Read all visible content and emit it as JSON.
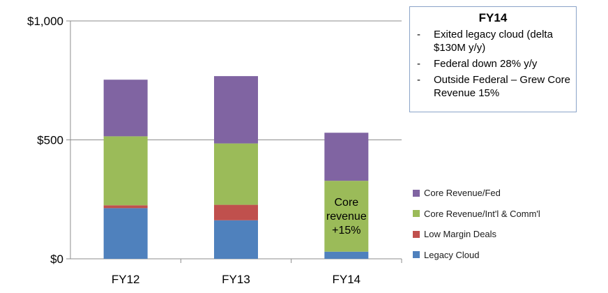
{
  "chart_data": {
    "type": "bar",
    "stacked": true,
    "categories": [
      "FY12",
      "FY13",
      "FY14"
    ],
    "series": [
      {
        "name": "Legacy Cloud",
        "color": "#4f81bd",
        "values": [
          213,
          162,
          30
        ]
      },
      {
        "name": "Low Margin Deals",
        "color": "#c0504d",
        "values": [
          12,
          65,
          0
        ]
      },
      {
        "name": "Core Revenue/Int'l & Comm'l",
        "color": "#9bbb59",
        "values": [
          290,
          258,
          298
        ]
      },
      {
        "name": "Core Revenue/Fed",
        "color": "#8064a2",
        "values": [
          238,
          283,
          202
        ]
      }
    ],
    "ylim": [
      0,
      1000
    ],
    "yticks": [
      {
        "value": 0,
        "label": "$0"
      },
      {
        "value": 500,
        "label": "$500"
      },
      {
        "value": 1000,
        "label": "$1,000"
      }
    ],
    "grid": true,
    "legend_position": "right",
    "annotations": [
      {
        "category": "FY14",
        "series": "Core Revenue/Int'l & Comm'l",
        "lines": [
          "Core",
          "revenue",
          "+15%"
        ]
      }
    ]
  },
  "callout": {
    "title": "FY14",
    "bullet": "-",
    "items": [
      "Exited legacy cloud (delta $130M y/y)",
      "Federal down 28% y/y",
      "Outside Federal – Grew Core Revenue 15%"
    ]
  },
  "legend": {
    "items": [
      {
        "label": "Core Revenue/Fed",
        "color": "#8064a2"
      },
      {
        "label": "Core Revenue/Int'l & Comm'l",
        "color": "#9bbb59"
      },
      {
        "label": "Low Margin Deals",
        "color": "#c0504d"
      },
      {
        "label": "Legacy Cloud",
        "color": "#4f81bd"
      }
    ]
  }
}
